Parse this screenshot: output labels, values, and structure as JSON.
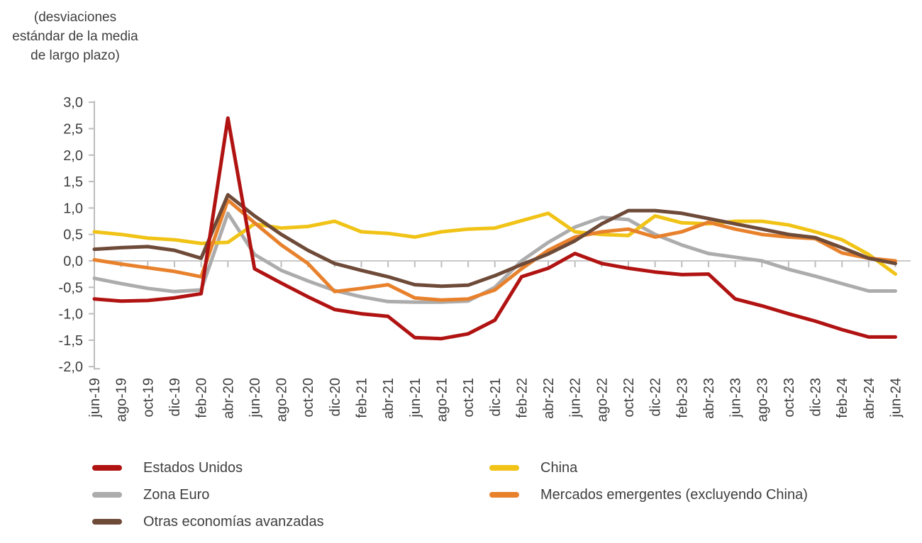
{
  "chart_data": {
    "type": "line",
    "title": "(desviaciones\nestándar de la media\nde largo plazo)",
    "xlabel": "",
    "ylabel": "",
    "ylim": [
      -2.0,
      3.0
    ],
    "y_tick_step": 0.5,
    "y_tick_labels": [
      "3,0",
      "2,5",
      "2,0",
      "1,5",
      "1,0",
      "0,5",
      "0,0",
      "-0,5",
      "-1,0",
      "-1,5",
      "-2,0"
    ],
    "grid": "zero-line-only",
    "legend_position": "bottom",
    "axis_color": "#bdbdbd",
    "zero_line_color": "#c9c9c9",
    "text_color": "#3e3e3e",
    "categories": [
      "jun-19",
      "ago-19",
      "oct-19",
      "dic-19",
      "feb-20",
      "abr-20",
      "jun-20",
      "ago-20",
      "oct-20",
      "dic-20",
      "feb-21",
      "abr-21",
      "jun-21",
      "ago-21",
      "oct-21",
      "dic-21",
      "feb-22",
      "abr-22",
      "jun-22",
      "ago-22",
      "oct-22",
      "dic-22",
      "feb-23",
      "abr-23",
      "jun-23",
      "ago-23",
      "oct-23",
      "dic-23",
      "feb-24",
      "abr-24",
      "jun-24"
    ],
    "series": [
      {
        "name": "Estados Unidos",
        "color": "#b01311",
        "values": [
          -0.72,
          -0.76,
          -0.75,
          -0.7,
          -0.62,
          2.7,
          -0.15,
          -0.42,
          -0.68,
          -0.92,
          -1.0,
          -1.05,
          -1.45,
          -1.47,
          -1.38,
          -1.12,
          -0.3,
          -0.14,
          0.14,
          -0.05,
          -0.14,
          -0.21,
          -0.26,
          -0.25,
          -0.72,
          -0.85,
          -1.0,
          -1.14,
          -1.3,
          -1.44,
          -1.44
        ]
      },
      {
        "name": "Zona Euro",
        "color": "#acacac",
        "values": [
          -0.33,
          -0.43,
          -0.52,
          -0.58,
          -0.55,
          0.9,
          0.12,
          -0.18,
          -0.38,
          -0.56,
          -0.68,
          -0.77,
          -0.78,
          -0.78,
          -0.76,
          -0.5,
          0.0,
          0.35,
          0.64,
          0.82,
          0.78,
          0.5,
          0.3,
          0.14,
          0.07,
          0.0,
          -0.16,
          -0.29,
          -0.43,
          -0.57,
          -0.57
        ]
      },
      {
        "name": "Otras economías avanzadas",
        "color": "#6e4a38",
        "values": [
          0.22,
          0.25,
          0.27,
          0.2,
          0.05,
          1.25,
          0.85,
          0.5,
          0.2,
          -0.05,
          -0.18,
          -0.3,
          -0.45,
          -0.48,
          -0.46,
          -0.28,
          -0.07,
          0.13,
          0.38,
          0.7,
          0.95,
          0.95,
          0.9,
          0.8,
          0.7,
          0.6,
          0.5,
          0.44,
          0.25,
          0.05,
          -0.05
        ]
      },
      {
        "name": "China",
        "color": "#f0c316",
        "values": [
          0.55,
          0.5,
          0.43,
          0.4,
          0.33,
          0.35,
          0.7,
          0.62,
          0.65,
          0.75,
          0.55,
          0.52,
          0.45,
          0.55,
          0.6,
          0.62,
          0.76,
          0.9,
          0.55,
          0.5,
          0.48,
          0.85,
          0.72,
          0.7,
          0.75,
          0.75,
          0.68,
          0.55,
          0.4,
          0.12,
          -0.25
        ]
      },
      {
        "name": "Mercados emergentes (excluyendo China)",
        "color": "#e8812c",
        "values": [
          0.02,
          -0.06,
          -0.13,
          -0.2,
          -0.3,
          1.15,
          0.72,
          0.3,
          -0.05,
          -0.58,
          -0.52,
          -0.45,
          -0.7,
          -0.74,
          -0.72,
          -0.55,
          -0.15,
          0.2,
          0.45,
          0.55,
          0.6,
          0.45,
          0.55,
          0.73,
          0.6,
          0.5,
          0.45,
          0.42,
          0.15,
          0.05,
          0.0
        ]
      }
    ]
  },
  "legend": {
    "items": [
      {
        "label": "Estados Unidos",
        "color": "#b01311"
      },
      {
        "label": "China",
        "color": "#f0c316"
      },
      {
        "label": "Zona Euro",
        "color": "#acacac"
      },
      {
        "label": "Mercados emergentes (excluyendo China)",
        "color": "#e8812c"
      },
      {
        "label": "Otras economías avanzadas",
        "color": "#6e4a38"
      }
    ]
  }
}
